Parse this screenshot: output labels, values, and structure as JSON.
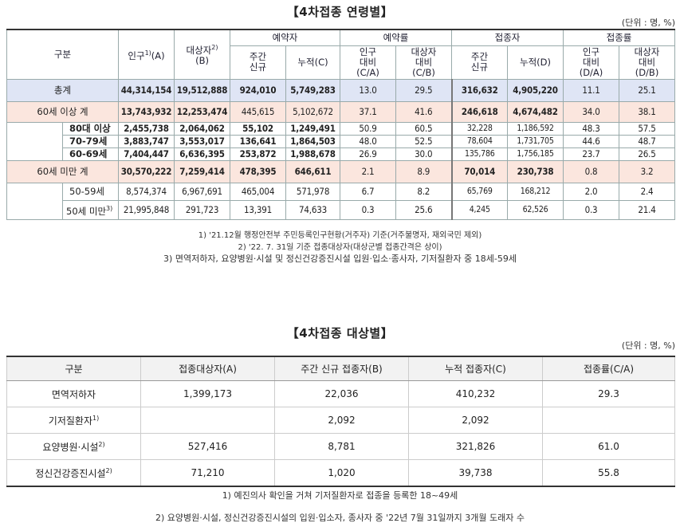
{
  "section1": {
    "title": "【4차접종 연령별】",
    "unit": "(단위 : 명, %)",
    "headers": {
      "group": "구분",
      "population": "인구",
      "population_sup": "1)",
      "population_suffix": "(A)",
      "target": "대상자",
      "target_sup": "2)",
      "target_suffix": "(B)",
      "reservations": "예약자",
      "reservation_rate": "예약률",
      "vaccinated": "접종자",
      "vaccination_rate": "접종률",
      "weekly_new_1": "주간",
      "weekly_new_2": "신규",
      "cumulative_c": "누적(C)",
      "vs_pop_1": "인구",
      "vs_pop_2": "대비",
      "vs_pop_3": "(C/A)",
      "vs_target_1": "대상자",
      "vs_target_2": "대비",
      "vs_target_3": "(C/B)",
      "weekly_new_b_1": "주간",
      "weekly_new_b_2": "신규",
      "cumulative_d": "누적(D)",
      "vs_pop_d_1": "인구",
      "vs_pop_d_2": "대비",
      "vs_pop_d_3": "(D/A)",
      "vs_target_d_1": "대상자",
      "vs_target_d_2": "대비",
      "vs_target_d_3": "(D/B)"
    },
    "rows": {
      "total": {
        "label": "총계",
        "v": [
          "44,314,154",
          "19,512,888",
          "924,010",
          "5,749,283",
          "13.0",
          "29.5",
          "316,632",
          "4,905,220",
          "11.1",
          "25.1"
        ]
      },
      "over60": {
        "label": "60세 이상 계",
        "v": [
          "13,743,932",
          "12,253,474",
          "445,615",
          "5,102,672",
          "37.1",
          "41.6",
          "246,618",
          "4,674,482",
          "34.0",
          "38.1"
        ]
      },
      "age80": {
        "label": "80대 이상",
        "v": [
          "2,455,738",
          "2,064,062",
          "55,102",
          "1,249,491",
          "50.9",
          "60.5",
          "32,228",
          "1,186,592",
          "48.3",
          "57.5"
        ]
      },
      "age70": {
        "label": "70-79세",
        "v": [
          "3,883,747",
          "3,553,017",
          "136,641",
          "1,864,503",
          "48.0",
          "52.5",
          "78,604",
          "1,731,705",
          "44.6",
          "48.7"
        ]
      },
      "age60": {
        "label": "60-69세",
        "v": [
          "7,404,447",
          "6,636,395",
          "253,872",
          "1,988,678",
          "26.9",
          "30.0",
          "135,786",
          "1,756,185",
          "23.7",
          "26.5"
        ]
      },
      "under60": {
        "label": "60세 미만 계",
        "v": [
          "30,570,222",
          "7,259,414",
          "478,395",
          "646,611",
          "2.1",
          "8.9",
          "70,014",
          "230,738",
          "0.8",
          "3.2"
        ]
      },
      "age50": {
        "label": "50-59세",
        "v": [
          "8,574,374",
          "6,967,691",
          "465,004",
          "571,978",
          "6.7",
          "8.2",
          "65,769",
          "168,212",
          "2.0",
          "2.4"
        ]
      },
      "under50": {
        "label": "50세 미만",
        "label_sup": "3)",
        "v": [
          "21,995,848",
          "291,723",
          "13,391",
          "74,633",
          "0.3",
          "25.6",
          "4,245",
          "62,526",
          "0.3",
          "21.4"
        ]
      }
    },
    "footnotes": [
      "1) '21.12월 행정안전부 주민등록인구현황(거주자) 기준(거주불명자, 재외국민 제외)",
      "2) '22. 7. 31일 기준 접종대상자(대상군별 접종간격은 상이)",
      "3) 면역저하자, 요양병원·시설 및 정신건강증진시설 입원·입소·종사자, 기저질환자 중 18세-59세"
    ]
  },
  "section2": {
    "title": "【4차접종 대상별】",
    "unit": "(단위 : 명, %)",
    "headers": [
      "구분",
      "접종대상자(A)",
      "주간 신규 접종자(B)",
      "누적 접종자(C)",
      "접종률(C/A)"
    ],
    "rows": [
      {
        "label": "면역저하자",
        "sup": "",
        "a": "1,399,173",
        "b": "22,036",
        "c": "410,232",
        "rate": "29.3"
      },
      {
        "label": "기저질환자",
        "sup": "1)",
        "a": "",
        "b": "2,092",
        "c": "2,092",
        "rate": ""
      },
      {
        "label": "요양병원·시설",
        "sup": "2)",
        "a": "527,416",
        "b": "8,781",
        "c": "321,826",
        "rate": "61.0"
      },
      {
        "label": "정신건강증진시설",
        "sup": "2)",
        "a": "71,210",
        "b": "1,020",
        "c": "39,738",
        "rate": "55.8"
      }
    ],
    "footnotes": [
      "1) 예진의사 확인을 거쳐 기저질환자로 접종을 등록한 18~49세",
      "2) 요양병원·시설, 정신건강증진시설의 입원·입소자, 종사자 중 '22년 7월 31일까지 3개월 도래자 수"
    ]
  }
}
